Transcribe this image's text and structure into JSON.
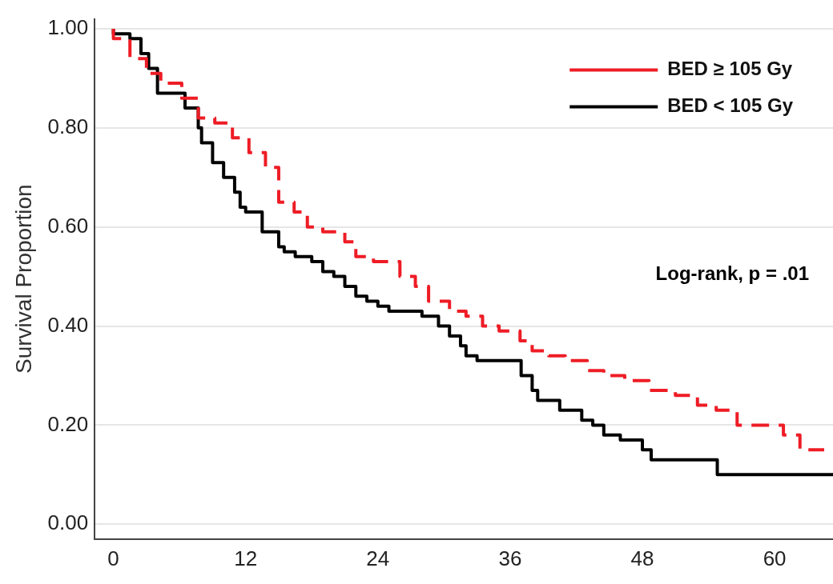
{
  "chart_data": {
    "type": "step",
    "ylabel": "Survival Proportion",
    "xlim": [
      -1.7,
      65.3
    ],
    "xticks": [
      0,
      12,
      24,
      36,
      48,
      60
    ],
    "ylim": [
      -0.03,
      1.02
    ],
    "yticks": [
      {
        "value": 0,
        "label": "0.00"
      },
      {
        "value": 0.2,
        "label": "0.20"
      },
      {
        "value": 0.4,
        "label": "0.40"
      },
      {
        "value": 0.6,
        "label": "0.60"
      },
      {
        "value": 0.8,
        "label": "0.80"
      },
      {
        "value": 1,
        "label": "1.00"
      }
    ],
    "grid": "y",
    "legend": "top right",
    "marker": "none",
    "annotations": [
      "Log-rank, p = .01"
    ],
    "series": [
      {
        "name": "BED ≥ 105 Gy",
        "color": "#ee1c25",
        "line_style": "dashed",
        "x": [
          0,
          1.5,
          3,
          4.3,
          6.2,
          7.7,
          9.2,
          10.8,
          12.3,
          13.8,
          15,
          16.4,
          17.6,
          19,
          21,
          22,
          23.6,
          26,
          27.4,
          28.6,
          30.5,
          32,
          33.5,
          35,
          36.9,
          38,
          39.5,
          41,
          43,
          44.5,
          46.4,
          48.6,
          51,
          53,
          54.7,
          56.6,
          57,
          60.8,
          62.3,
          64.5
        ],
        "values": [
          1.0,
          0.98,
          0.94,
          0.91,
          0.89,
          0.86,
          0.82,
          0.81,
          0.78,
          0.75,
          0.72,
          0.65,
          0.63,
          0.6,
          0.59,
          0.57,
          0.54,
          0.53,
          0.5,
          0.48,
          0.45,
          0.43,
          0.42,
          0.4,
          0.39,
          0.37,
          0.35,
          0.34,
          0.33,
          0.31,
          0.3,
          0.29,
          0.27,
          0.26,
          0.24,
          0.23,
          0.2,
          0.2,
          0.18,
          0.15
        ]
      },
      {
        "name": "BED < 105 Gy",
        "color": "#000000",
        "line_style": "solid",
        "x": [
          0,
          1.5,
          2.5,
          3.2,
          4,
          6.5,
          7.7,
          8,
          9,
          10,
          11,
          11.5,
          12,
          13.5,
          15,
          15.5,
          16.5,
          18,
          19,
          20,
          21,
          22,
          23,
          24,
          25,
          28,
          29.5,
          30.5,
          31.5,
          32,
          33,
          37,
          38,
          38.5,
          40.5,
          42.5,
          43.5,
          44.5,
          46,
          48,
          48.8,
          54.8,
          58,
          65.3
        ],
        "values": [
          1.0,
          0.99,
          0.98,
          0.95,
          0.92,
          0.87,
          0.84,
          0.8,
          0.77,
          0.73,
          0.7,
          0.67,
          0.64,
          0.63,
          0.59,
          0.56,
          0.55,
          0.54,
          0.53,
          0.51,
          0.5,
          0.48,
          0.46,
          0.45,
          0.44,
          0.43,
          0.42,
          0.4,
          0.38,
          0.36,
          0.34,
          0.33,
          0.3,
          0.27,
          0.25,
          0.23,
          0.21,
          0.2,
          0.18,
          0.17,
          0.15,
          0.13,
          0.1,
          0.1
        ]
      }
    ]
  }
}
